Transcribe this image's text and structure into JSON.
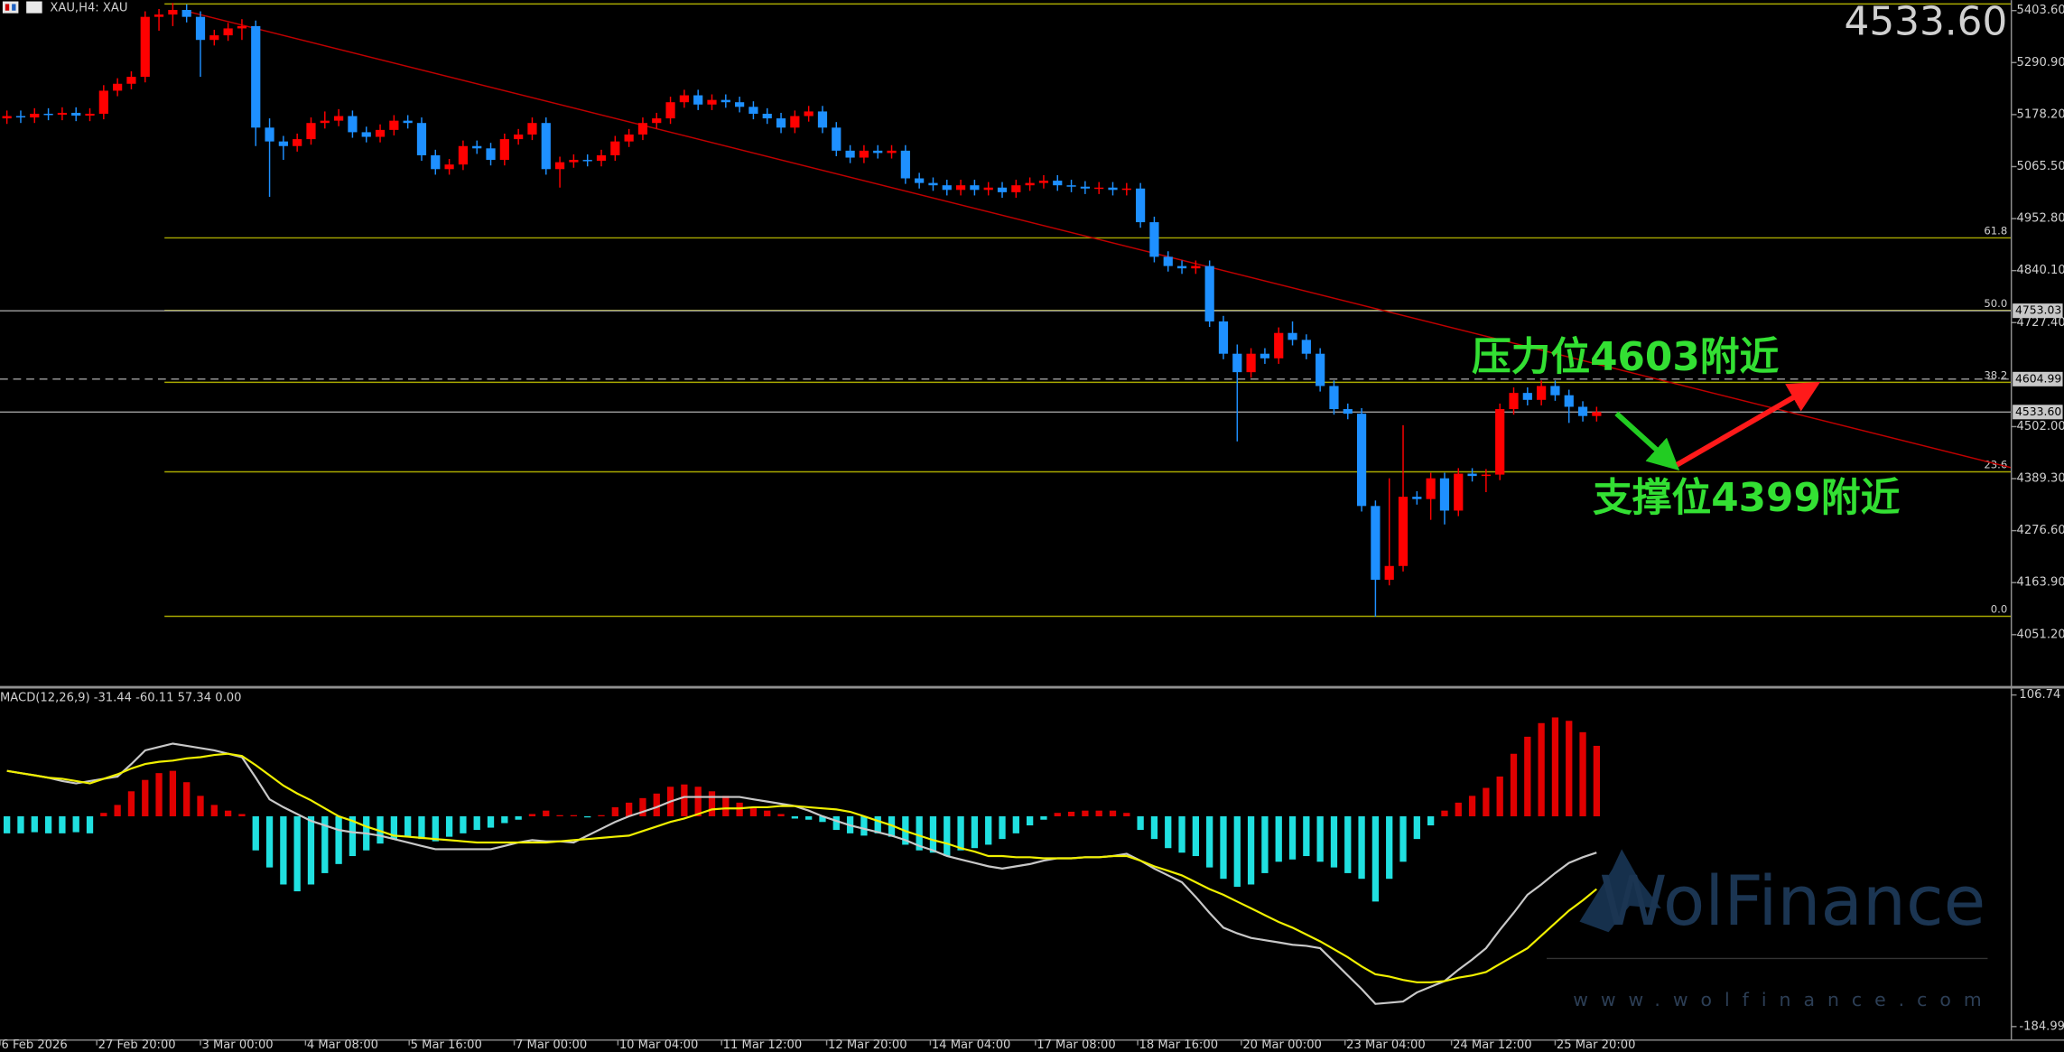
{
  "header": {
    "symbol": "XAU,H4: XAU",
    "last_price": {
      "value": 4533.6,
      "label": "4533.60"
    },
    "last_price_color": "#7cfc00"
  },
  "watermark": {
    "brand": "WolFinance",
    "url": "www.wolfinance.com"
  },
  "chart_data": [
    {
      "type": "candlestick",
      "up_color": "#ff0000",
      "down_color": "#1e90ff",
      "xlim": [
        -0.5,
        145
      ],
      "ylim": [
        3940,
        5426.4
      ],
      "yticks": [
        {
          "value": 5403.6,
          "label": "5403.60"
        },
        {
          "value": 5290.9,
          "label": "5290.90"
        },
        {
          "value": 5178.2,
          "label": "5178.20"
        },
        {
          "value": 5065.5,
          "label": "5065.50"
        },
        {
          "value": 4952.8,
          "label": "4952.80"
        },
        {
          "value": 4840.1,
          "label": "4840.10"
        },
        {
          "value": 4727.4,
          "label": "4727.40"
        },
        {
          "value": 4502,
          "label": "4502.00"
        },
        {
          "value": 4389.3,
          "label": "4389.30"
        },
        {
          "value": 4276.6,
          "label": "4276.60"
        },
        {
          "value": 4163.9,
          "label": "4163.90"
        },
        {
          "value": 4051.2,
          "label": "4051.20"
        }
      ],
      "xticks": [
        {
          "value": -0.5,
          "label": "6 Feb 2026"
        },
        {
          "value": 6.5,
          "label": "27 Feb 20:00"
        },
        {
          "value": 14,
          "label": "3 Mar 00:00"
        },
        {
          "value": 21.6,
          "label": "4 Mar 08:00"
        },
        {
          "value": 29.1,
          "label": "5 Mar 16:00"
        },
        {
          "value": 36.7,
          "label": "7 Mar 00:00"
        },
        {
          "value": 44.2,
          "label": "10 Mar 04:00"
        },
        {
          "value": 51.7,
          "label": "11 Mar 12:00"
        },
        {
          "value": 59.3,
          "label": "12 Mar 20:00"
        },
        {
          "value": 66.8,
          "label": "14 Mar 04:00"
        },
        {
          "value": 74.4,
          "label": "17 Mar 08:00"
        },
        {
          "value": 81.8,
          "label": "18 Mar 16:00"
        },
        {
          "value": 89.3,
          "label": "20 Mar 00:00"
        },
        {
          "value": 96.8,
          "label": "23 Mar 04:00"
        },
        {
          "value": 104.5,
          "label": "24 Mar 12:00"
        },
        {
          "value": 112,
          "label": "25 Mar 20:00"
        }
      ],
      "open": [
        5170,
        5175,
        5172,
        5180,
        5178,
        5182,
        5176,
        5180,
        5230,
        5245,
        5260,
        5390,
        5395,
        5405,
        5390,
        5340,
        5350,
        5365,
        5370,
        5150,
        5120,
        5110,
        5125,
        5160,
        5165,
        5175,
        5140,
        5130,
        5145,
        5165,
        5160,
        5090,
        5060,
        5070,
        5110,
        5105,
        5080,
        5125,
        5135,
        5160,
        5060,
        5075,
        5080,
        5078,
        5090,
        5120,
        5135,
        5160,
        5170,
        5205,
        5220,
        5200,
        5210,
        5205,
        5195,
        5180,
        5170,
        5150,
        5175,
        5185,
        5150,
        5100,
        5085,
        5100,
        5095,
        5100,
        5040,
        5030,
        5025,
        5015,
        5025,
        5015,
        5020,
        5010,
        5025,
        5030,
        5035,
        5025,
        5022,
        5018,
        5020,
        5015,
        5018,
        4945,
        4870,
        4850,
        4845,
        4850,
        4730,
        4660,
        4620,
        4660,
        4650,
        4705,
        4690,
        4660,
        4590,
        4540,
        4530,
        4330,
        4170,
        4200,
        4350,
        4345,
        4390,
        4320,
        4400,
        4395,
        4398,
        4540,
        4575,
        4560,
        4590,
        4570,
        4545,
        4525
      ],
      "high": [
        5187,
        5187,
        5192,
        5192,
        5194,
        5194,
        5192,
        5242,
        5257,
        5272,
        5402,
        5407,
        5420,
        5417,
        5402,
        5362,
        5377,
        5385,
        5382,
        5170,
        5132,
        5137,
        5172,
        5185,
        5190,
        5187,
        5152,
        5157,
        5177,
        5177,
        5172,
        5102,
        5082,
        5122,
        5122,
        5117,
        5137,
        5147,
        5172,
        5172,
        5087,
        5092,
        5092,
        5102,
        5132,
        5147,
        5172,
        5182,
        5217,
        5232,
        5232,
        5222,
        5222,
        5217,
        5207,
        5192,
        5182,
        5187,
        5197,
        5197,
        5162,
        5112,
        5112,
        5112,
        5112,
        5112,
        5052,
        5042,
        5037,
        5037,
        5037,
        5032,
        5032,
        5037,
        5042,
        5047,
        5047,
        5037,
        5034,
        5032,
        5032,
        5030,
        5030,
        4957,
        4882,
        4862,
        4862,
        4862,
        4742,
        4680,
        4672,
        4672,
        4717,
        4730,
        4702,
        4672,
        4602,
        4552,
        4542,
        4342,
        4390,
        4505,
        4362,
        4402,
        4402,
        4412,
        4412,
        4410,
        4552,
        4587,
        4587,
        4602,
        4602,
        4582,
        4557,
        4545
      ],
      "low": [
        5158,
        5160,
        5160,
        5166,
        5166,
        5164,
        5164,
        5168,
        5218,
        5233,
        5248,
        5360,
        5370,
        5378,
        5260,
        5328,
        5338,
        5340,
        5110,
        5000,
        5080,
        5098,
        5113,
        5148,
        5153,
        5128,
        5118,
        5118,
        5133,
        5148,
        5078,
        5048,
        5048,
        5058,
        5093,
        5068,
        5068,
        5113,
        5123,
        5048,
        5020,
        5063,
        5066,
        5066,
        5078,
        5108,
        5123,
        5148,
        5158,
        5193,
        5188,
        5188,
        5193,
        5183,
        5168,
        5158,
        5138,
        5138,
        5163,
        5138,
        5088,
        5073,
        5073,
        5083,
        5083,
        5028,
        5018,
        5013,
        5003,
        5003,
        5003,
        5003,
        4998,
        4998,
        5013,
        5018,
        5013,
        5010,
        5006,
        5006,
        5003,
        5003,
        4933,
        4858,
        4838,
        4833,
        4833,
        4718,
        4648,
        4470,
        4608,
        4638,
        4638,
        4678,
        4648,
        4578,
        4528,
        4518,
        4318,
        4090,
        4158,
        4188,
        4333,
        4300,
        4290,
        4308,
        4383,
        4360,
        4386,
        4528,
        4548,
        4548,
        4558,
        4510,
        4513,
        4513
      ],
      "close": [
        5175,
        5172,
        5180,
        5178,
        5182,
        5176,
        5180,
        5230,
        5245,
        5260,
        5390,
        5395,
        5405,
        5390,
        5340,
        5350,
        5365,
        5370,
        5150,
        5120,
        5110,
        5125,
        5160,
        5165,
        5175,
        5140,
        5130,
        5145,
        5165,
        5160,
        5090,
        5060,
        5070,
        5110,
        5105,
        5080,
        5125,
        5135,
        5160,
        5060,
        5075,
        5080,
        5078,
        5090,
        5120,
        5135,
        5160,
        5170,
        5205,
        5220,
        5200,
        5210,
        5205,
        5195,
        5180,
        5170,
        5150,
        5175,
        5185,
        5150,
        5100,
        5085,
        5100,
        5095,
        5100,
        5040,
        5030,
        5025,
        5015,
        5025,
        5015,
        5020,
        5010,
        5025,
        5030,
        5035,
        5025,
        5022,
        5018,
        5020,
        5015,
        5018,
        4945,
        4870,
        4850,
        4845,
        4850,
        4730,
        4660,
        4620,
        4660,
        4650,
        4705,
        4690,
        4660,
        4590,
        4540,
        4530,
        4330,
        4170,
        4200,
        4350,
        4345,
        4390,
        4320,
        4400,
        4395,
        4398,
        4540,
        4575,
        4560,
        4590,
        4570,
        4545,
        4525,
        4533.6
      ],
      "price_levels": [
        {
          "value": 4753.03,
          "label": "4753.03",
          "dashed": false
        },
        {
          "value": 4604.99,
          "label": "4604.99",
          "dashed": true
        },
        {
          "value": 4533.6,
          "label": "4533.60",
          "dashed": false
        }
      ],
      "fib": {
        "color": "#a8a800",
        "start": 11.4,
        "levels": [
          {
            "value": 5418,
            "label": null
          },
          {
            "value": 4911,
            "label": "61.8"
          },
          {
            "value": 4754,
            "label": "50.0"
          },
          {
            "value": 4598,
            "label": "38.2"
          },
          {
            "value": 4404,
            "label": "23.6"
          },
          {
            "value": 4091,
            "label": "0.0"
          }
        ]
      },
      "trendline": {
        "color": "#c00000",
        "x": [
          12.9,
          145
        ],
        "y": [
          5403,
          4413
        ]
      },
      "annotation_color": "#33e033",
      "annotations": [
        "压力位4603附近",
        "支撑位4399附近"
      ]
    },
    {
      "type": "macd",
      "title": "MACD(12,26,9) -31.44 -60.11 57.34 0.00",
      "ylim": [
        -196.9,
        111.2
      ],
      "yticks": [
        106.74,
        -184.99
      ],
      "positive_color": "#e00000",
      "negative_color": "#20e0e0",
      "histogram": [
        -15,
        -15,
        -14,
        -15,
        -15,
        -14,
        -15,
        3,
        10,
        22,
        32,
        38,
        40,
        30,
        18,
        10,
        5,
        2,
        -30,
        -45,
        -60,
        -66,
        -60,
        -50,
        -42,
        -35,
        -30,
        -24,
        -20,
        -18,
        -20,
        -22,
        -18,
        -15,
        -12,
        -10,
        -6,
        -3,
        2,
        5,
        1,
        1,
        -1,
        1,
        8,
        12,
        16,
        20,
        26,
        28,
        26,
        22,
        18,
        12,
        8,
        5,
        2,
        -2,
        -3,
        -5,
        -12,
        -15,
        -17,
        -15,
        -18,
        -25,
        -30,
        -32,
        -35,
        -30,
        -28,
        -25,
        -20,
        -15,
        -8,
        -3,
        3,
        4,
        5,
        5,
        5,
        3,
        -12,
        -20,
        -28,
        -32,
        -35,
        -45,
        -55,
        -62,
        -60,
        -50,
        -40,
        -38,
        -35,
        -40,
        -45,
        -50,
        -55,
        -75,
        -55,
        -40,
        -20,
        -8,
        5,
        12,
        18,
        25,
        35,
        55,
        70,
        82,
        87,
        84,
        74,
        62
      ],
      "series": [
        {
          "color": "#c8c8c8",
          "values": [
            40,
            38,
            36,
            34,
            31,
            29,
            31,
            33,
            35,
            46,
            58,
            61,
            64,
            62,
            60,
            58,
            55,
            52,
            34,
            15,
            8,
            2,
            -4,
            -8,
            -12,
            -14,
            -15,
            -17,
            -20,
            -23,
            -26,
            -29,
            -29,
            -29,
            -29,
            -29,
            -26,
            -23,
            -21,
            -22,
            -22,
            -23,
            -17,
            -11,
            -5,
            0,
            4,
            8,
            13,
            17,
            17,
            17,
            17,
            17,
            15,
            13,
            11,
            9,
            5,
            0,
            -4,
            -8,
            -11,
            -14,
            -17,
            -21,
            -26,
            -30,
            -35,
            -38,
            -41,
            -44,
            -46,
            -44,
            -42,
            -39,
            -37,
            -37,
            -36,
            -36,
            -35,
            -33,
            -39,
            -46,
            -52,
            -58,
            -71,
            -85,
            -98,
            -103,
            -107,
            -109,
            -111,
            -113,
            -114,
            -116,
            -128,
            -140,
            -152,
            -165,
            -164,
            -163,
            -155,
            -150,
            -145,
            -135,
            -126,
            -116,
            -100,
            -85,
            -69,
            -60,
            -50,
            -41,
            -36,
            -32
          ]
        },
        {
          "color": "#f0f000",
          "values": [
            40,
            38,
            36,
            34,
            33,
            31,
            29,
            33,
            37,
            42,
            46,
            48,
            49,
            51,
            52,
            54,
            55,
            53,
            45,
            36,
            27,
            20,
            14,
            7,
            0,
            -4,
            -9,
            -13,
            -17,
            -18,
            -19,
            -20,
            -21,
            -22,
            -23,
            -23,
            -23,
            -23,
            -23,
            -23,
            -22,
            -21,
            -20,
            -19,
            -18,
            -17,
            -13,
            -9,
            -5,
            -2,
            2,
            6,
            7,
            7,
            8,
            8,
            9,
            9,
            8,
            7,
            6,
            4,
            0,
            -4,
            -8,
            -13,
            -17,
            -21,
            -24,
            -28,
            -31,
            -35,
            -35,
            -36,
            -36,
            -37,
            -37,
            -37,
            -36,
            -36,
            -35,
            -35,
            -39,
            -44,
            -48,
            -52,
            -58,
            -64,
            -69,
            -75,
            -81,
            -87,
            -93,
            -98,
            -104,
            -110,
            -117,
            -124,
            -132,
            -139,
            -141,
            -144,
            -146,
            -146,
            -145,
            -142,
            -140,
            -137,
            -130,
            -123,
            -116,
            -105,
            -94,
            -83,
            -74,
            -64
          ]
        }
      ]
    }
  ]
}
